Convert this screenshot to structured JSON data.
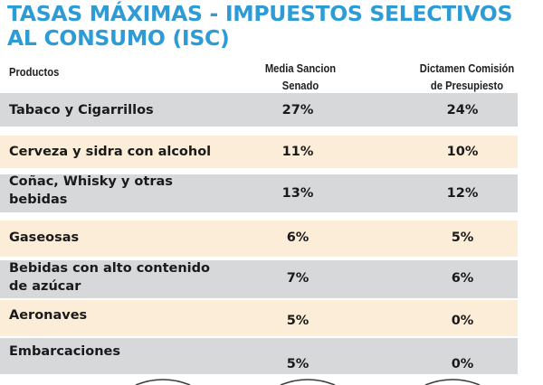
{
  "title": "TASAS MÁXIMAS - IMPUESTOS SELECTIVOS AL CONSUMO (ISC)",
  "headers": {
    "products": "Productos",
    "senado": [
      "Media Sancion",
      "Senado"
    ],
    "dictamen": [
      "Dictamen Comisión",
      "de Presupiesto"
    ]
  },
  "rows": [
    {
      "label": [
        "Tabaco y Cigarrillos"
      ],
      "senado": "27%",
      "dictamen": "24%"
    },
    {
      "label": [
        "Cerveza y sidra con alcohol"
      ],
      "senado": "11%",
      "dictamen": "10%"
    },
    {
      "label": [
        "Coñac, Whisky y otras",
        "bebidas"
      ],
      "senado": "13%",
      "dictamen": "12%"
    },
    {
      "label": [
        "Gaseosas"
      ],
      "senado": "6%",
      "dictamen": "5%"
    },
    {
      "label": [
        "Bebidas con alto contenido",
        "de azúcar"
      ],
      "senado": "7%",
      "dictamen": "6%"
    },
    {
      "label": [
        "Aeronaves"
      ],
      "senado": "5%",
      "dictamen": "0%"
    },
    {
      "label": [
        "Embarcaciones"
      ],
      "senado": "5%",
      "dictamen": "0%"
    }
  ],
  "colors": {
    "title": "#2d9bd6",
    "row_gray": "#d7d8da",
    "row_cream": "#fcedd8",
    "text": "#1a1a1a"
  }
}
